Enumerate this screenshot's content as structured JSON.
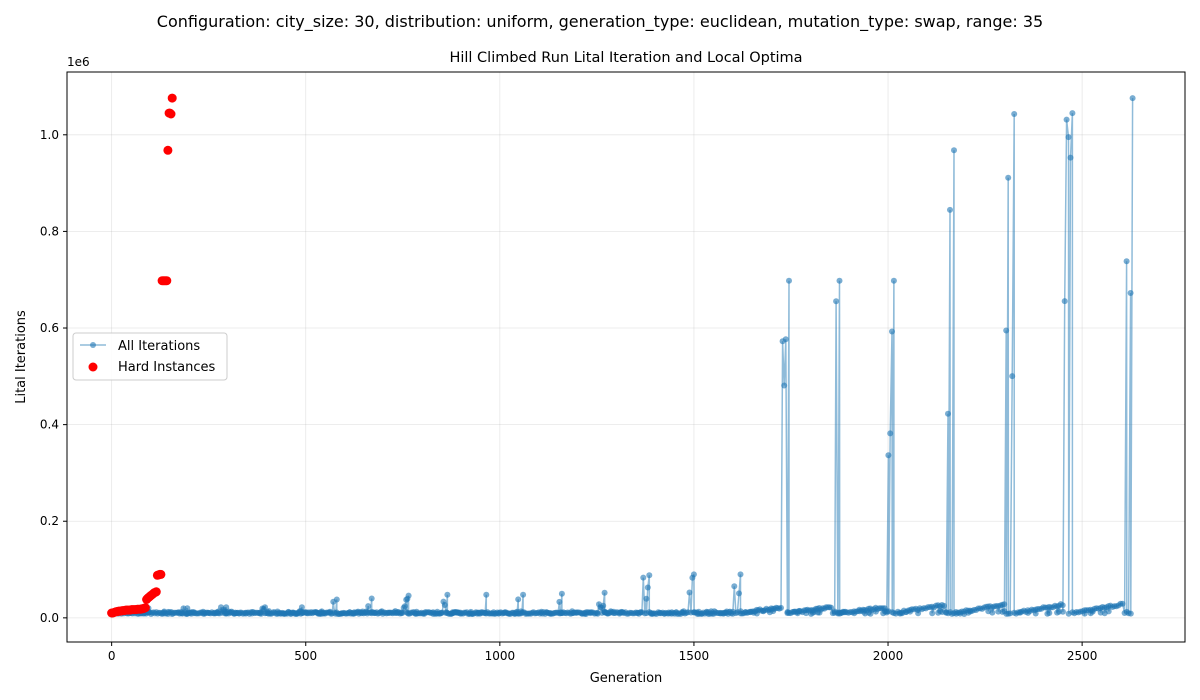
{
  "suptitle": "Configuration: city_size: 30, distribution: uniform, generation_type: euclidean, mutation_type: swap, range: 35",
  "chart_data": {
    "type": "line",
    "title": "Hill Climbed Run Lital Iteration and Local Optima",
    "xlabel": "Generation",
    "ylabel": "Lital Iterations",
    "y_offset_label": "1e6",
    "xlim": [
      -115,
      2765
    ],
    "ylim": [
      -50000,
      1130000
    ],
    "grid": true,
    "legend_location": "center left",
    "x_ticks": [
      0,
      500,
      1000,
      1500,
      2000,
      2500
    ],
    "x_tick_labels": [
      "0",
      "500",
      "1000",
      "1500",
      "2000",
      "2500"
    ],
    "y_ticks": [
      0,
      200000,
      400000,
      600000,
      800000,
      1000000
    ],
    "y_tick_labels": [
      "0.0",
      "0.2",
      "0.4",
      "0.6",
      "0.8",
      "1.0"
    ],
    "series": [
      {
        "name": "All Iterations",
        "color": "#1f77b4",
        "marker": "circle",
        "pattern": {
          "repeating_cycles": [
            {
              "start": 0,
              "end": 95,
              "peak": 20000
            },
            {
              "start": 95,
              "end": 195,
              "peak": 20000
            },
            {
              "start": 195,
              "end": 295,
              "peak": 22000
            },
            {
              "start": 295,
              "end": 395,
              "peak": 22000
            },
            {
              "start": 395,
              "end": 490,
              "peak": 22000
            },
            {
              "start": 490,
              "end": 580,
              "peak": 38000
            },
            {
              "start": 580,
              "end": 670,
              "peak": 40000
            },
            {
              "start": 670,
              "end": 765,
              "peak": 46000
            },
            {
              "start": 765,
              "end": 865,
              "peak": 48000
            },
            {
              "start": 865,
              "end": 965,
              "peak": 48000
            },
            {
              "start": 965,
              "end": 1060,
              "peak": 48000
            },
            {
              "start": 1060,
              "end": 1160,
              "peak": 50000
            },
            {
              "start": 1160,
              "end": 1270,
              "peak": 52000
            },
            {
              "start": 1270,
              "end": 1385,
              "peak": 88000
            },
            {
              "start": 1385,
              "end": 1500,
              "peak": 90000
            },
            {
              "start": 1500,
              "end": 1620,
              "peak": 90000
            },
            {
              "start": 1620,
              "end": 1745,
              "peak": 698000
            },
            {
              "start": 1745,
              "end": 1875,
              "peak": 698000
            },
            {
              "start": 1875,
              "end": 2015,
              "peak": 698000
            },
            {
              "start": 2015,
              "end": 2170,
              "peak": 968000
            },
            {
              "start": 2170,
              "end": 2325,
              "peak": 1043000
            },
            {
              "start": 2325,
              "end": 2475,
              "peak": 1045000
            },
            {
              "start": 2475,
              "end": 2630,
              "peak": 1076000
            }
          ]
        }
      },
      {
        "name": "Hard Instances",
        "color": "#ff0000",
        "marker": "circle",
        "x": [
          0,
          3,
          6,
          9,
          12,
          15,
          18,
          21,
          24,
          27,
          30,
          33,
          36,
          39,
          42,
          45,
          48,
          51,
          54,
          57,
          60,
          63,
          66,
          69,
          72,
          75,
          78,
          81,
          84,
          87,
          90,
          92,
          95,
          98,
          101,
          104,
          107,
          110,
          113,
          115,
          118,
          121,
          124,
          127,
          130,
          133,
          136,
          139,
          142,
          145,
          148,
          150,
          153,
          156
        ],
        "y": [
          10000,
          10000,
          11000,
          12000,
          13000,
          13000,
          14000,
          14000,
          14000,
          15000,
          15000,
          15000,
          16000,
          16000,
          16000,
          16000,
          16000,
          17000,
          17000,
          17000,
          17000,
          17000,
          18000,
          18000,
          18000,
          18000,
          19000,
          19000,
          20000,
          21000,
          38000,
          40000,
          42000,
          44000,
          46000,
          48000,
          50000,
          52000,
          53000,
          54000,
          88000,
          89000,
          90000,
          90000,
          698000,
          698000,
          698000,
          698000,
          698000,
          968000,
          1045000,
          1045000,
          1043000,
          1076000
        ]
      }
    ]
  }
}
